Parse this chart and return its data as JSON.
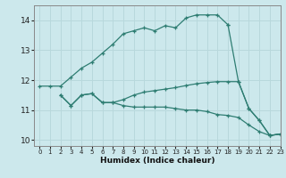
{
  "background_color": "#cce8ec",
  "line_color": "#2e7d72",
  "grid_color": "#b8d8dc",
  "xlabel": "Humidex (Indice chaleur)",
  "xlim": [
    -0.5,
    23
  ],
  "ylim": [
    9.8,
    14.5
  ],
  "yticks": [
    10,
    11,
    12,
    13,
    14
  ],
  "xticks": [
    0,
    1,
    2,
    3,
    4,
    5,
    6,
    7,
    8,
    9,
    10,
    11,
    12,
    13,
    14,
    15,
    16,
    17,
    18,
    19,
    20,
    21,
    22,
    23
  ],
  "series": [
    {
      "x": [
        0,
        1,
        2,
        3,
        4,
        5,
        6,
        7,
        8,
        9,
        10,
        11,
        12,
        13,
        14,
        15,
        16,
        17,
        18
      ],
      "y": [
        11.8,
        11.8,
        11.8,
        12.1,
        12.4,
        12.6,
        12.9,
        13.2,
        13.55,
        13.65,
        13.75,
        13.65,
        13.82,
        13.75,
        14.08,
        14.18,
        14.18,
        14.18,
        13.85
      ]
    },
    {
      "x": [
        2,
        3,
        4,
        5,
        6,
        7,
        8,
        9,
        10,
        11,
        12,
        13,
        14,
        15,
        16,
        17,
        18,
        19,
        20,
        21,
        22,
        23
      ],
      "y": [
        11.5,
        11.15,
        11.5,
        11.55,
        11.25,
        11.25,
        11.35,
        11.5,
        11.6,
        11.65,
        11.7,
        11.75,
        11.82,
        11.88,
        11.92,
        11.95,
        11.95,
        11.95,
        11.05,
        10.65,
        10.15,
        10.2
      ]
    },
    {
      "x": [
        2,
        3,
        4,
        5,
        6,
        7,
        8,
        9,
        10,
        11,
        12,
        13,
        14,
        15,
        16,
        17,
        18,
        19,
        20,
        21,
        22,
        23
      ],
      "y": [
        11.5,
        11.15,
        11.5,
        11.55,
        11.25,
        11.25,
        11.15,
        11.1,
        11.1,
        11.1,
        11.1,
        11.05,
        11.0,
        11.0,
        10.95,
        10.85,
        10.82,
        10.75,
        10.5,
        10.28,
        10.15,
        10.2
      ]
    },
    {
      "x": [
        18,
        19,
        20,
        21,
        22,
        23
      ],
      "y": [
        13.85,
        11.95,
        11.05,
        10.65,
        10.15,
        10.2
      ]
    }
  ]
}
